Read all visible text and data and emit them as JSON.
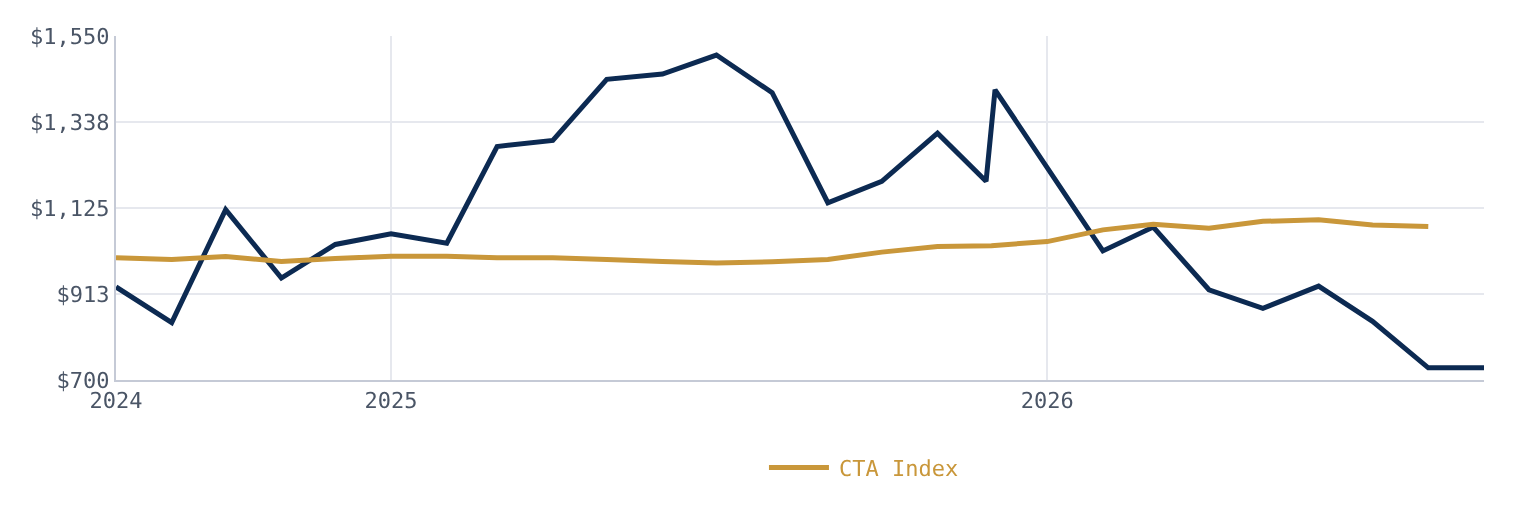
{
  "chart_data": {
    "type": "line",
    "xlim": [
      "2024-08-01",
      "2026-09-01"
    ],
    "xticks": [
      {
        "value": "2024-08-01",
        "label": "2024"
      },
      {
        "value": "2025-01-01",
        "label": "2025"
      },
      {
        "value": "2026-01-01",
        "label": "2026"
      }
    ],
    "ylim": [
      700,
      1550
    ],
    "yticks": [
      {
        "value": 700,
        "label": "$700"
      },
      {
        "value": 913,
        "label": "$913"
      },
      {
        "value": 1125,
        "label": "$1,125"
      },
      {
        "value": 1338,
        "label": "$1,338"
      },
      {
        "value": 1550,
        "label": "$1,550"
      }
    ],
    "grid": true,
    "legend": "bottom",
    "marker": "none",
    "line_style": "solid",
    "series": [
      {
        "color": "#0c2a52",
        "x": [
          "2024-08",
          "2024-09",
          "2024-10",
          "2024-11",
          "2024-12",
          "2025-01",
          "2025-02",
          "2025-03",
          "2025-04",
          "2025-05",
          "2025-06",
          "2025-07",
          "2025-08",
          "2025-09",
          "2025-10",
          "2025-11",
          "2025-11-28",
          "2025-12-03",
          "2026-02",
          "2026-03",
          "2026-04",
          "2026-05",
          "2026-06",
          "2026-07",
          "2026-08",
          "2026-09"
        ],
        "values": [
          930,
          842,
          1121,
          952,
          1035,
          1061,
          1038,
          1277,
          1292,
          1443,
          1456,
          1503,
          1410,
          1138,
          1191,
          1310,
          1191,
          1417,
          1019,
          1078,
          923,
          877,
          932,
          845,
          730,
          730
        ]
      },
      {
        "name": "CTA Index",
        "color": "#c9973a",
        "x": [
          "2024-08",
          "2024-09",
          "2024-10",
          "2024-11",
          "2024-12",
          "2025-01",
          "2025-02",
          "2025-03",
          "2025-04",
          "2025-05",
          "2025-06",
          "2025-07",
          "2025-08",
          "2025-09",
          "2025-10",
          "2025-11",
          "2025-12",
          "2026-01",
          "2026-02",
          "2026-03",
          "2026-04",
          "2026-05",
          "2026-06",
          "2026-07",
          "2026-08"
        ],
        "values": [
          1002,
          998,
          1005,
          993,
          1000,
          1006,
          1006,
          1002,
          1002,
          998,
          993,
          989,
          992,
          998,
          1016,
          1030,
          1032,
          1042,
          1071,
          1085,
          1075,
          1092,
          1096,
          1083,
          1079
        ]
      }
    ]
  }
}
